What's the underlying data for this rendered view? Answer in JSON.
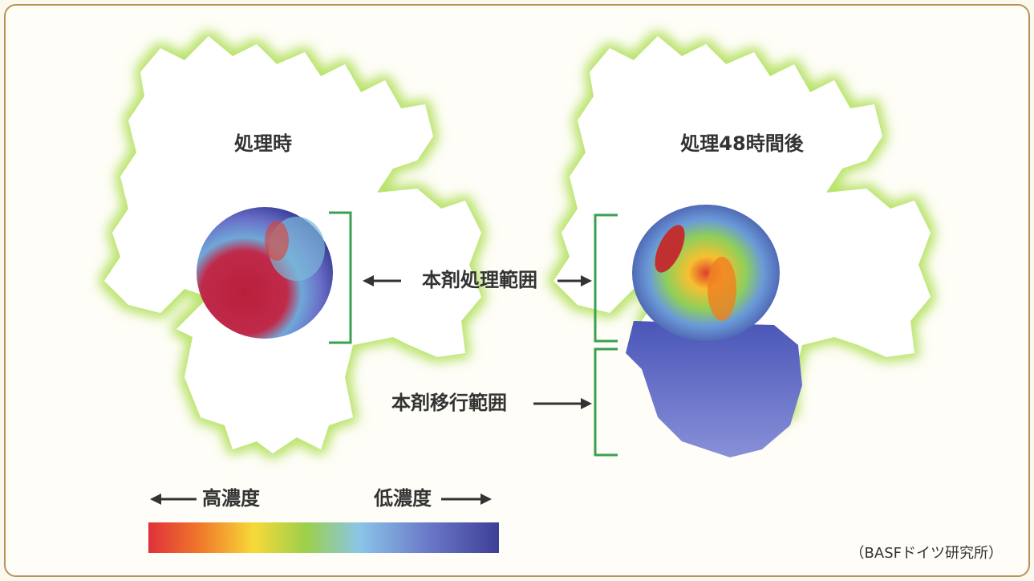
{
  "panels": [
    {
      "title": "処理時"
    },
    {
      "title": "処理48時間後"
    }
  ],
  "labels": {
    "treated": "本剤処理範囲",
    "moved": "本剤移行範囲"
  },
  "legend": {
    "high": "高濃度",
    "low": "低濃度"
  },
  "source": "（BASFドイツ研究所）"
}
